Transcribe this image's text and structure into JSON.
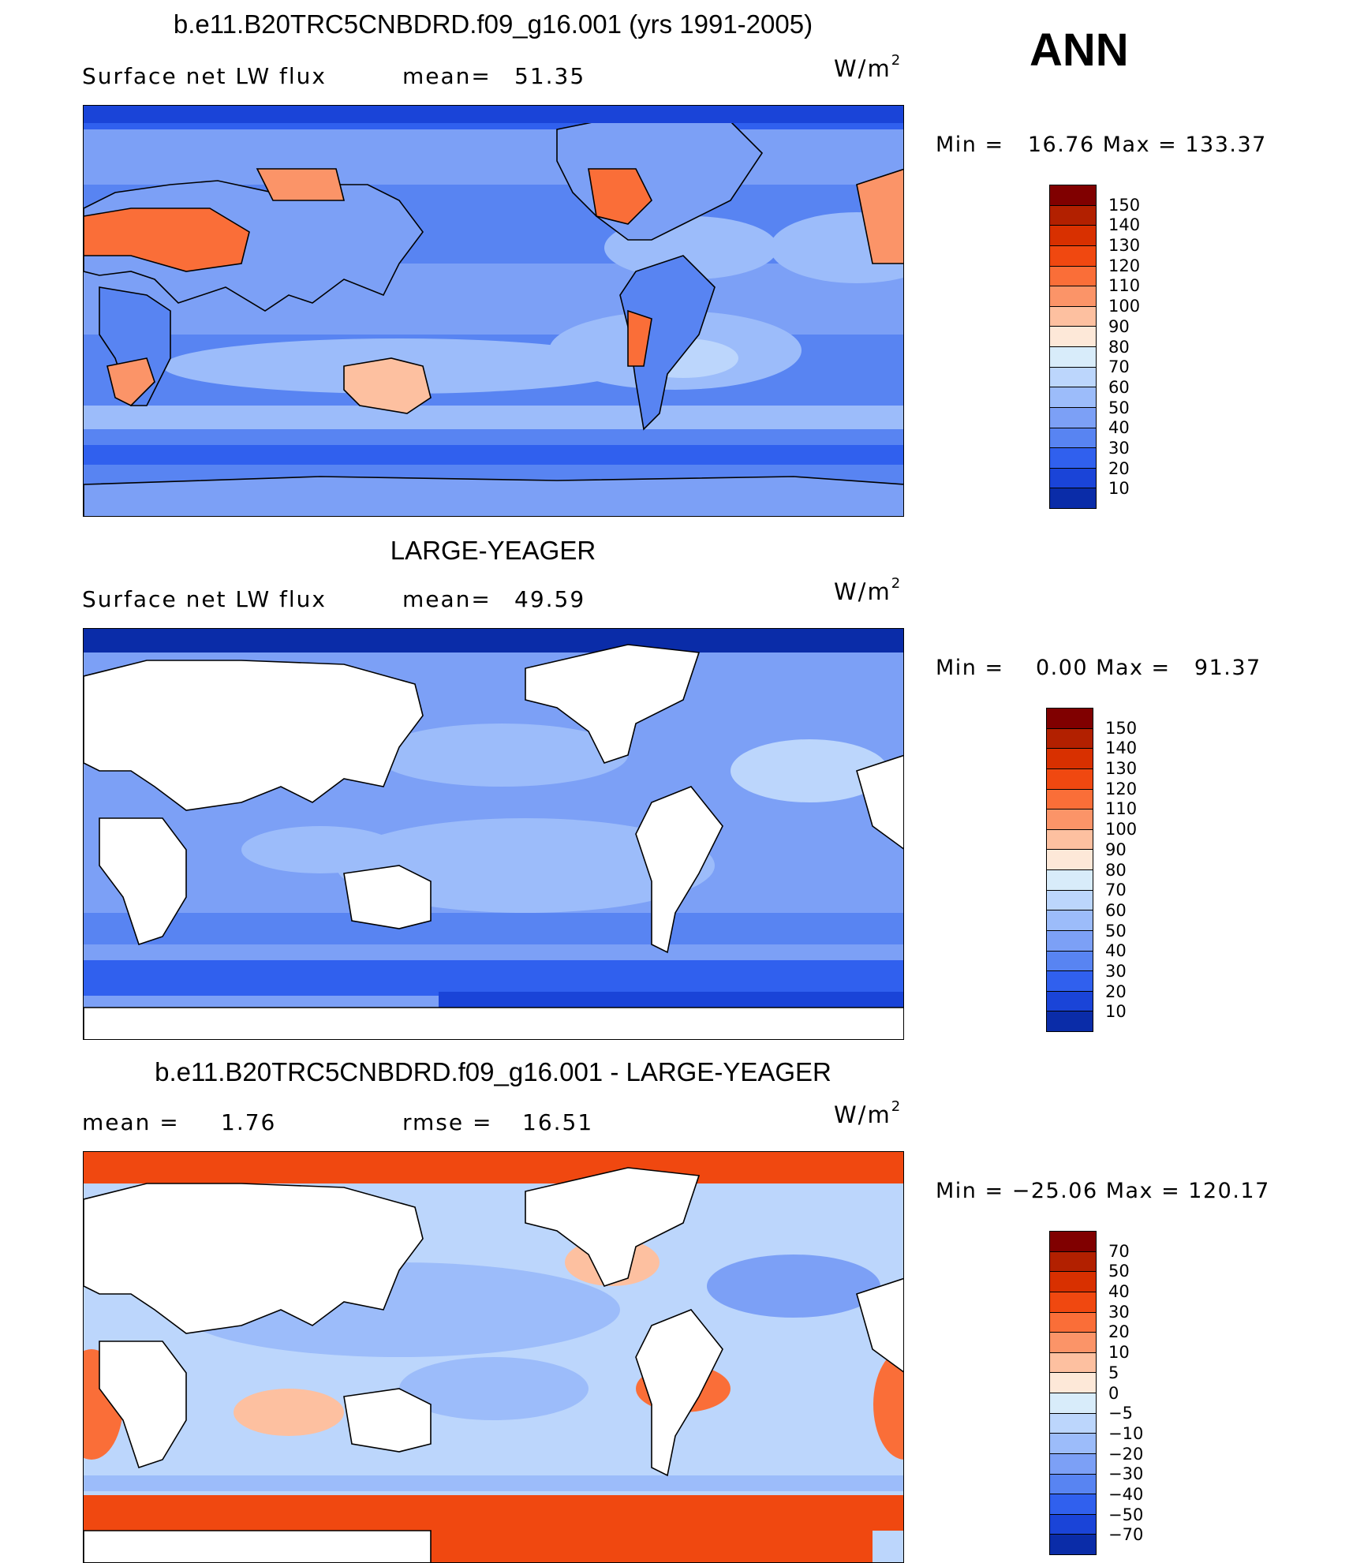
{
  "overall_label": "ANN",
  "panels": [
    {
      "title": "b.e11.B20TRC5CNBDRD.f09_g16.001 (yrs 1991-2005)",
      "left_label": "Surface net LW flux",
      "mid_label": "mean=",
      "mid_value": "51.35",
      "units_base": "W/m",
      "units_exp": "2",
      "minmax": "Min =   16.76 Max = 133.37",
      "colorbar": {
        "ticks": [
          "150",
          "140",
          "130",
          "120",
          "110",
          "100",
          "90",
          "80",
          "70",
          "60",
          "50",
          "40",
          "30",
          "20",
          "10"
        ],
        "colors": [
          "#800000",
          "#b22000",
          "#d83000",
          "#f04810",
          "#fa6e38",
          "#fb9468",
          "#fdc0a0",
          "#fde8d8",
          "#d8ecfa",
          "#bcd6fc",
          "#9cbcfa",
          "#7ca0f6",
          "#5884f2",
          "#3060ee",
          "#1a44d8",
          "#0a2ca8"
        ]
      }
    },
    {
      "title": "LARGE-YEAGER",
      "left_label": "Surface net LW flux",
      "mid_label": "mean=",
      "mid_value": "49.59",
      "units_base": "W/m",
      "units_exp": "2",
      "minmax": "Min =    0.00 Max =   91.37",
      "colorbar": {
        "ticks": [
          "150",
          "140",
          "130",
          "120",
          "110",
          "100",
          "90",
          "80",
          "70",
          "60",
          "50",
          "40",
          "30",
          "20",
          "10"
        ],
        "colors": [
          "#800000",
          "#b22000",
          "#d83000",
          "#f04810",
          "#fa6e38",
          "#fb9468",
          "#fdc0a0",
          "#fde8d8",
          "#d8ecfa",
          "#bcd6fc",
          "#9cbcfa",
          "#7ca0f6",
          "#5884f2",
          "#3060ee",
          "#1a44d8",
          "#0a2ca8"
        ]
      }
    },
    {
      "title": "b.e11.B20TRC5CNBDRD.f09_g16.001 - LARGE-YEAGER",
      "left_label": "mean =",
      "left_value": "1.76",
      "mid_label": "rmse =",
      "mid_value": "16.51",
      "units_base": "W/m",
      "units_exp": "2",
      "minmax": "Min = −25.06 Max = 120.17",
      "colorbar": {
        "ticks": [
          "70",
          "50",
          "40",
          "30",
          "20",
          "10",
          "5",
          "0",
          "−5",
          "−10",
          "−20",
          "−30",
          "−40",
          "−50",
          "−70"
        ],
        "colors": [
          "#800000",
          "#b22000",
          "#d83000",
          "#f04810",
          "#fa6e38",
          "#fb9468",
          "#fdc0a0",
          "#fde8d8",
          "#d8ecfa",
          "#bcd6fc",
          "#9cbcfa",
          "#7ca0f6",
          "#5884f2",
          "#3060ee",
          "#1a44d8",
          "#0a2ca8"
        ]
      }
    }
  ]
}
